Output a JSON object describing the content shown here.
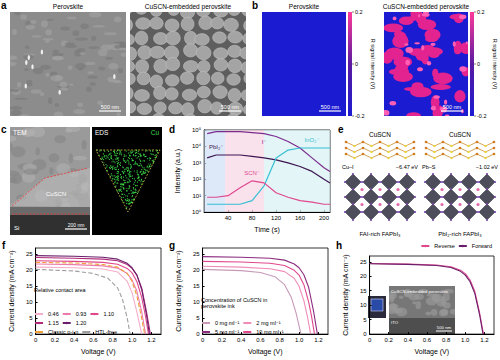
{
  "image_panels": {
    "a": {
      "letter": "a",
      "images": [
        {
          "title": "Perovskite",
          "scale_bar": "500 nm"
        },
        {
          "title": "CuSCN-embedded perovskite",
          "scale_bar": "500 nm"
        }
      ]
    },
    "b": {
      "letter": "b",
      "maps": [
        {
          "title": "Perovskite",
          "scale_bar": "500 nm"
        },
        {
          "title": "CuSCN-embedded perovskite",
          "scale_bar": "500 nm"
        }
      ],
      "colorbar": {
        "label": "R signal intensity (V)",
        "range": [
          -0.2,
          0.2
        ],
        "ticks": [
          0.2,
          0,
          -0.2
        ]
      }
    },
    "c": {
      "letter": "c",
      "images": [
        {
          "title": "TEM",
          "labels": [
            "CuSCN",
            "Si"
          ],
          "scale_bar": "200 nm"
        },
        {
          "title": "EDS",
          "labels": [
            "Cu"
          ]
        }
      ]
    },
    "e": {
      "letter": "e",
      "structures": [
        {
          "title": "CuSCN",
          "substrate": "FAI-rich FAPbI₃",
          "energy": "−6.47 eV",
          "bond": "Cu–I"
        },
        {
          "title": "CuSCN",
          "substrate": "PbI₂-rich FAPbI₃",
          "energy": "−1.02 eV",
          "bond": "Pb–S"
        }
      ]
    },
    "h": {
      "labels": [
        "CuSCN-embedded perovskite",
        "ITO"
      ],
      "scale_bar": "500 nm"
    }
  },
  "chart_data": [
    {
      "letter": "d",
      "type": "line",
      "xlabel": "Time (s)",
      "ylabel": "Intensity (a.u.)",
      "log": "y",
      "xlim": [
        0,
        210
      ],
      "xticks": [
        40,
        80,
        120,
        160,
        200
      ],
      "ylim": [
        1,
        100000
      ],
      "yticks": [
        {
          "value": 1,
          "label": "10⁰"
        },
        {
          "value": 10,
          "label": "10¹"
        },
        {
          "value": 100,
          "label": "10²"
        },
        {
          "value": 1000,
          "label": "10³"
        },
        {
          "value": 10000,
          "label": "10⁴"
        },
        {
          "value": 100000,
          "label": "10⁵"
        }
      ],
      "x": [
        5,
        20,
        40,
        60,
        80,
        100,
        120,
        140,
        160,
        180,
        200,
        210
      ],
      "series": [
        {
          "name": "I⁻",
          "color": "#7b2d8e",
          "values": [
            60000,
            80000,
            80000,
            80000,
            70000,
            60000,
            40000,
            20000,
            8000,
            2000,
            500,
            300
          ]
        },
        {
          "name": "PbI₂⁻",
          "color": "#3d1450",
          "values": [
            2000,
            3000,
            3000,
            3000,
            2500,
            2000,
            1500,
            1000,
            600,
            300,
            100,
            60
          ]
        },
        {
          "name": "InO₂⁻",
          "color": "#36bfd3",
          "values": [
            3,
            3,
            3,
            3,
            5,
            40,
            2000,
            6000,
            8000,
            8000,
            8000,
            8000
          ]
        },
        {
          "name": "SCN⁻",
          "color": "#e0488e",
          "values": [
            8,
            8,
            10,
            30,
            80,
            60,
            15,
            8,
            5,
            4,
            3,
            3
          ]
        }
      ],
      "regions": [
        {
          "x": [
            0,
            35
          ],
          "color": "#cfe0f7"
        },
        {
          "x": [
            35,
            100
          ],
          "color": "#f8d6e6"
        },
        {
          "x": [
            100,
            210
          ],
          "color": "#d7f1f4"
        }
      ]
    },
    {
      "letter": "f",
      "type": "line",
      "xlabel": "Voltage (V)",
      "ylabel": "Current density (mA cm⁻²)",
      "xlim": [
        0,
        1.3
      ],
      "xticks": [
        0,
        0.2,
        0.4,
        0.6,
        0.8,
        {
          "value": 1,
          "label": "1.0"
        },
        1.2
      ],
      "ylim": [
        0,
        27
      ],
      "yticks": [
        0,
        5,
        10,
        15,
        20,
        25
      ],
      "legend": "lower left",
      "annotations": [
        "Relative contact area"
      ],
      "series": [
        {
          "name": "0.46",
          "color": "#f4aecb",
          "x": [
            0,
            0.4,
            0.7,
            0.85,
            0.95,
            1.0,
            1.05,
            1.1
          ],
          "values": [
            21,
            20.8,
            20.4,
            19.5,
            16.5,
            13,
            7,
            0
          ]
        },
        {
          "name": "0.93",
          "color": "#ec7cae",
          "x": [
            0,
            0.4,
            0.7,
            0.85,
            0.95,
            1.0,
            1.05,
            1.1,
            1.14
          ],
          "values": [
            22,
            21.8,
            21.4,
            20.7,
            19,
            17,
            13.5,
            7,
            0
          ]
        },
        {
          "name": "1.10",
          "color": "#e0488e",
          "x": [
            0,
            0.4,
            0.7,
            0.85,
            0.95,
            1.0,
            1.05,
            1.1,
            1.14,
            1.17
          ],
          "values": [
            23,
            22.8,
            22.5,
            21.9,
            20.6,
            19.2,
            16.5,
            11.5,
            5.5,
            0
          ]
        },
        {
          "name": "1.15",
          "color": "#b02a7a",
          "x": [
            0,
            0.4,
            0.7,
            0.85,
            0.95,
            1.0,
            1.05,
            1.1,
            1.15,
            1.19
          ],
          "values": [
            24,
            23.8,
            23.5,
            23,
            21.8,
            20.6,
            18.5,
            14.5,
            7,
            0
          ]
        },
        {
          "name": "1.20",
          "color": "#6b1f6b",
          "x": [
            0,
            0.4,
            0.7,
            0.85,
            0.95,
            1.0,
            1.05,
            1.1,
            1.15,
            1.18
          ],
          "values": [
            24.6,
            24.4,
            24.1,
            23.5,
            22.2,
            20.8,
            18.5,
            14,
            6,
            0
          ]
        },
        {
          "name": "Classic p-i-n",
          "color": "#f0a03c",
          "line_style": "dashed",
          "x": [
            0,
            0.4,
            0.7,
            0.85,
            0.95,
            1.0,
            1.05,
            1.1,
            1.13
          ],
          "values": [
            22.5,
            22.3,
            21.8,
            21,
            19,
            16.5,
            12,
            5,
            0
          ]
        },
        {
          "name": "HTL-free",
          "color": "#9e9e9e",
          "line_style": "dashed",
          "x": [
            0,
            0.4,
            0.6,
            0.75,
            0.85,
            0.9,
            0.95,
            0.98
          ],
          "values": [
            20.3,
            19.8,
            19,
            17.5,
            14.5,
            11,
            5,
            0
          ]
        }
      ]
    },
    {
      "letter": "g",
      "type": "line",
      "xlabel": "Voltage (V)",
      "ylabel": "Current density (mA cm⁻²)",
      "xlim": [
        0,
        1.3
      ],
      "xticks": [
        0,
        0.2,
        0.4,
        0.6,
        0.8,
        {
          "value": 1,
          "label": "1.0"
        },
        1.2
      ],
      "ylim": [
        0,
        27
      ],
      "yticks": [
        0,
        5,
        10,
        15,
        20,
        25
      ],
      "legend": "lower left",
      "annotations": [
        "Concentration of CuSCN in perovskite ink"
      ],
      "series": [
        {
          "name": "0 mg ml⁻¹",
          "color": "#c79ab8",
          "x": [
            0,
            0.4,
            0.6,
            0.75,
            0.85,
            0.92,
            0.97,
            1.02
          ],
          "values": [
            20.3,
            19.9,
            19.3,
            18,
            15.5,
            11.5,
            6.5,
            0
          ]
        },
        {
          "name": "2 mg ml⁻¹",
          "color": "#ef8cb8",
          "x": [
            0,
            0.4,
            0.7,
            0.85,
            0.95,
            1.0,
            1.05,
            1.09,
            1.12
          ],
          "values": [
            21.3,
            21.0,
            20.5,
            19.6,
            17.5,
            15,
            10.5,
            5,
            0
          ]
        },
        {
          "name": "5 mg ml⁻¹",
          "color": "#8c2d7f",
          "x": [
            0,
            0.4,
            0.7,
            0.85,
            0.95,
            1.0,
            1.05,
            1.1,
            1.15,
            1.19
          ],
          "values": [
            24.3,
            24.1,
            23.8,
            23.2,
            22,
            20.8,
            18.6,
            14.6,
            7.2,
            0
          ]
        },
        {
          "name": "10 mg ml⁻¹",
          "color": "#e0488e",
          "x": [
            0,
            0.4,
            0.7,
            0.85,
            0.95,
            1.0,
            1.05,
            1.1,
            1.13,
            1.16
          ],
          "values": [
            22.8,
            22.6,
            22.2,
            21.5,
            20,
            18.5,
            15.5,
            10,
            5.5,
            0
          ]
        }
      ]
    },
    {
      "letter": "h",
      "type": "line",
      "xlabel": "Voltage (V)",
      "ylabel": "Current density (mA cm⁻²)",
      "xlim": [
        0,
        1.3
      ],
      "xticks": [
        0,
        0.2,
        0.4,
        0.6,
        0.8,
        {
          "value": 1,
          "label": "1.0"
        },
        1.2
      ],
      "ylim": [
        0,
        27
      ],
      "yticks": [
        0,
        5,
        10,
        15,
        20,
        25
      ],
      "legend": "upper right",
      "series": [
        {
          "name": "Reverse",
          "color": "#e0488e",
          "x": [
            0,
            0.4,
            0.7,
            0.85,
            0.95,
            1.0,
            1.05,
            1.1,
            1.15,
            1.19
          ],
          "values": [
            24.4,
            24.2,
            23.9,
            23.3,
            22.1,
            20.9,
            18.7,
            14.7,
            7.3,
            0
          ]
        },
        {
          "name": "Forward",
          "color": "#6b1f6b",
          "x": [
            0,
            0.4,
            0.7,
            0.85,
            0.95,
            1.0,
            1.05,
            1.1,
            1.15,
            1.185
          ],
          "values": [
            24.3,
            24.1,
            23.7,
            23.0,
            21.7,
            20.4,
            18.1,
            14.0,
            6.6,
            0
          ]
        }
      ]
    }
  ]
}
